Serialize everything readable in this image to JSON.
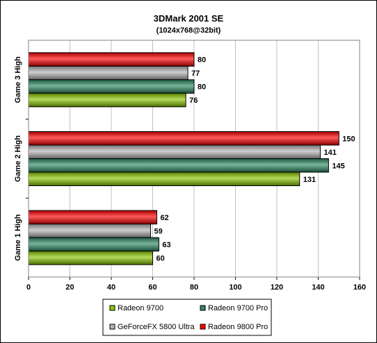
{
  "chart_data": {
    "type": "bar",
    "orientation": "horizontal",
    "title": "3DMark 2001 SE",
    "subtitle": "(1024x768@32bit)",
    "xlabel": "",
    "ylabel": "",
    "xlim": [
      0,
      160
    ],
    "xticks": [
      0,
      20,
      40,
      60,
      80,
      100,
      120,
      140,
      160
    ],
    "grid": true,
    "legend_position": "bottom",
    "categories": [
      "Game 3 High",
      "Game 2 High",
      "Game 1 High"
    ],
    "series": [
      {
        "name": "Radeon 9800 Pro",
        "color": "#ff0000",
        "values": [
          80,
          150,
          62
        ]
      },
      {
        "name": "GeForceFX 5800 Ultra",
        "color": "#b4b4b4",
        "values": [
          77,
          141,
          59
        ]
      },
      {
        "name": "Radeon 9700 Pro",
        "color": "#2e8b64",
        "values": [
          80,
          145,
          63
        ]
      },
      {
        "name": "Radeon 9700",
        "color": "#8cc800",
        "values": [
          76,
          131,
          60
        ]
      }
    ],
    "legend_order": [
      "Radeon 9700",
      "Radeon 9700 Pro",
      "GeForceFX 5800 Ultra",
      "Radeon 9800 Pro"
    ]
  }
}
